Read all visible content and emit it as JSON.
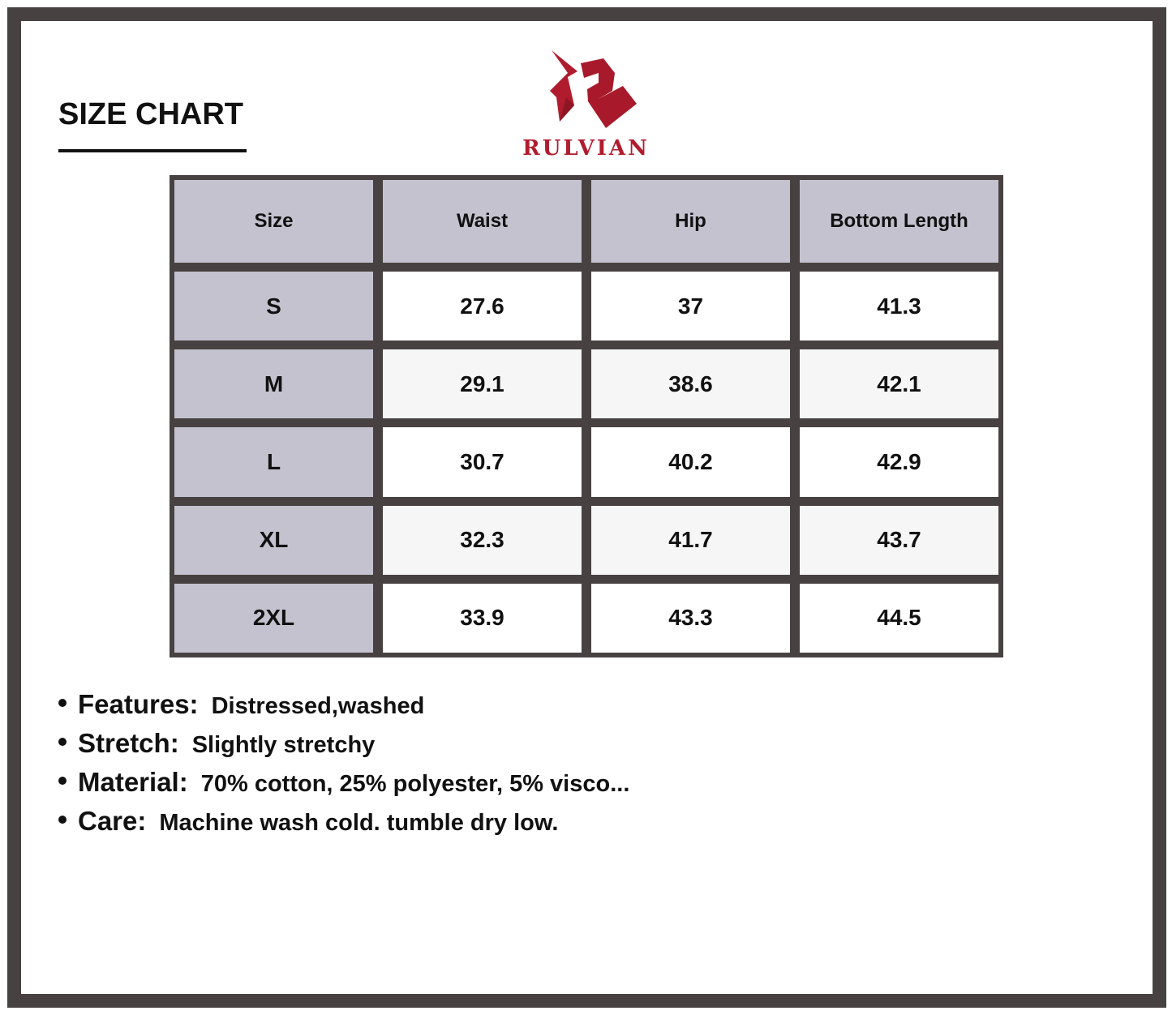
{
  "title": "SIZE CHART",
  "brand": {
    "name": "RULVIAN",
    "color": "#b01c2e"
  },
  "table": {
    "headers": [
      "Size",
      "Waist",
      "Hip",
      "Bottom Length"
    ],
    "rows": [
      [
        "S",
        "27.6",
        "37",
        "41.3"
      ],
      [
        "M",
        "29.1",
        "38.6",
        "42.1"
      ],
      [
        "L",
        "30.7",
        "40.2",
        "42.9"
      ],
      [
        "XL",
        "32.3",
        "41.7",
        "43.7"
      ],
      [
        "2XL",
        "33.9",
        "43.3",
        "44.5"
      ]
    ]
  },
  "notes": [
    {
      "label": "Features:",
      "value": "Distressed,washed"
    },
    {
      "label": "Stretch:",
      "value": "Slightly stretchy"
    },
    {
      "label": "Material:",
      "value": "70% cotton, 25% polyester, 5% visco..."
    },
    {
      "label": "Care:",
      "value": "Machine wash cold. tumble dry low."
    }
  ]
}
